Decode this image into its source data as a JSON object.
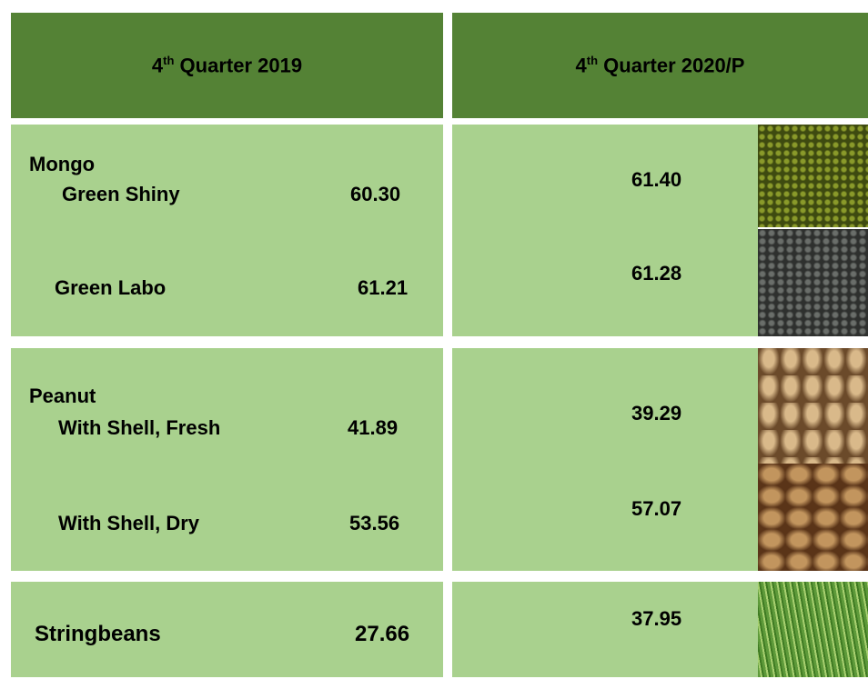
{
  "header": [
    {
      "pre": "4",
      "sup": "th",
      "post": " Quarter 2019"
    },
    {
      "pre": "4",
      "sup": "th",
      "post": " Quarter 2020/P"
    }
  ],
  "groups": [
    {
      "name": "Mongo",
      "items": [
        {
          "label": "Green Shiny",
          "q2019": "60.30",
          "q2020": "61.40"
        },
        {
          "label": "Green Labo",
          "q2019": "61.21",
          "q2020": "61.28"
        }
      ]
    },
    {
      "name": "Peanut",
      "items": [
        {
          "label": "With Shell, Fresh",
          "q2019": "41.89",
          "q2020": "39.29"
        },
        {
          "label": "With Shell, Dry",
          "q2019": "53.56",
          "q2020": "57.07"
        }
      ]
    },
    {
      "items": [
        {
          "label": "Stringbeans",
          "q2019": "27.66",
          "q2020": "37.95"
        }
      ]
    }
  ]
}
